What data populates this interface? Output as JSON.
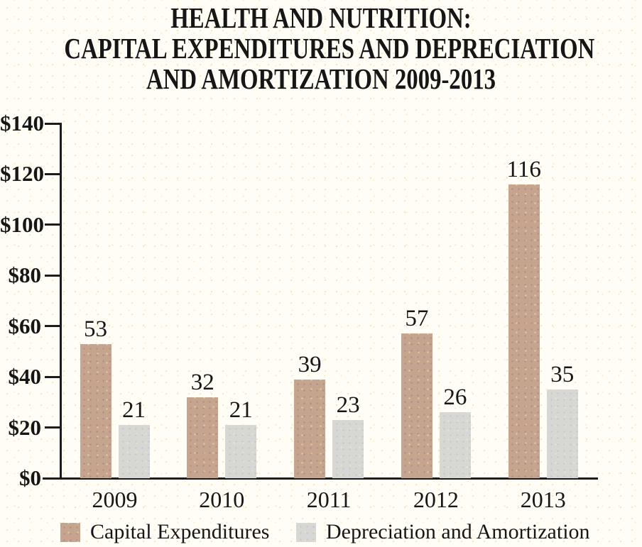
{
  "title": {
    "lines": [
      "HEALTH AND NUTRITION:",
      "CAPITAL EXPENDITURES AND DEPRECIATION",
      "AND AMORTIZATION 2009-2013"
    ]
  },
  "chart_data": {
    "type": "bar",
    "title": "HEALTH AND NUTRITION: CAPITAL EXPENDITURES AND DEPRECIATION AND AMORTIZATION 2009-2013",
    "categories": [
      "2009",
      "2010",
      "2011",
      "2012",
      "2013"
    ],
    "series": [
      {
        "name": "Capital Expenditures",
        "color": "#c6a48e",
        "values": [
          53,
          32,
          39,
          57,
          116
        ]
      },
      {
        "name": "Depreciation and Amortization",
        "color": "#d7d8d4",
        "values": [
          21,
          21,
          23,
          26,
          35
        ]
      }
    ],
    "xlabel": "",
    "ylabel": "",
    "ylim": [
      0,
      140
    ],
    "y_ticks": [
      "$0",
      "$20",
      "$40",
      "$60",
      "$80",
      "$100",
      "$120",
      "$140"
    ],
    "y_tick_values": [
      0,
      20,
      40,
      60,
      80,
      100,
      120,
      140
    ],
    "grid": false,
    "bar_value_labels": true,
    "legend_position": "bottom"
  },
  "legend": {
    "items": [
      {
        "label": "Capital Expenditures",
        "color": "#c6a48e"
      },
      {
        "label": "Depreciation and Amortization",
        "color": "#d7d8d4"
      }
    ]
  },
  "colors": {
    "axis": "#1c1c1c",
    "text": "#161616",
    "background": "#fffdf6"
  }
}
